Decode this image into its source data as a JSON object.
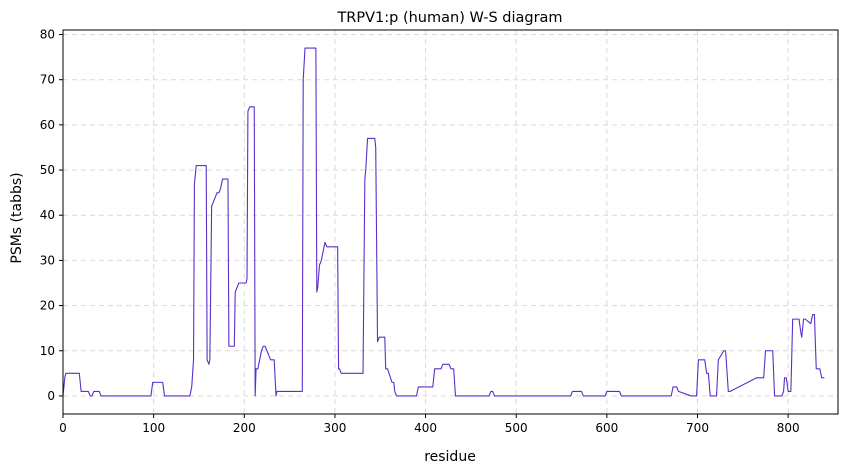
{
  "chart_data": {
    "type": "line",
    "title": "TRPV1:p (human) W-S diagram",
    "xlabel": "residue",
    "ylabel": "PSMs (tabbs)",
    "xlim": [
      0,
      855
    ],
    "ylim": [
      -4,
      81
    ],
    "xticks": [
      0,
      100,
      200,
      300,
      400,
      500,
      600,
      700,
      800
    ],
    "yticks": [
      0,
      10,
      20,
      30,
      40,
      50,
      60,
      70,
      80
    ],
    "grid": true,
    "line_color": "#5b2fc9",
    "series": [
      {
        "x": [
          0,
          2,
          3,
          5,
          18,
          20,
          28,
          30,
          32,
          34,
          40,
          42,
          97,
          99,
          110,
          112,
          140,
          142,
          144,
          145,
          147,
          158,
          159,
          161,
          162,
          164,
          166,
          168,
          170,
          172,
          174,
          176,
          182,
          183,
          189,
          190,
          192,
          194,
          202,
          203,
          204,
          206,
          211,
          212,
          213,
          215,
          219,
          221,
          223,
          225,
          227,
          229,
          233,
          235,
          236,
          238,
          264,
          265,
          267,
          269,
          279,
          280,
          281,
          283,
          285,
          287,
          289,
          291,
          303,
          304,
          305,
          307,
          331,
          333,
          334,
          336,
          344,
          345,
          347,
          349,
          355,
          356,
          358,
          363,
          365,
          366,
          368,
          369,
          390,
          392,
          408,
          410,
          417,
          419,
          426,
          428,
          431,
          433,
          470,
          472,
          474,
          476,
          560,
          562,
          572,
          574,
          598,
          600,
          614,
          616,
          671,
          673,
          677,
          679,
          693,
          695,
          699,
          701,
          708,
          710,
          712,
          714,
          721,
          723,
          729,
          731,
          734,
          736,
          765,
          767,
          773,
          775,
          783,
          785,
          793,
          795,
          796,
          798,
          800,
          803,
          805,
          812,
          814,
          815,
          817,
          819,
          825,
          827,
          829,
          831,
          835,
          837,
          840
        ],
        "y": [
          0,
          4,
          5,
          5,
          5,
          1,
          1,
          0,
          0,
          1,
          1,
          0,
          0,
          3,
          3,
          0,
          0,
          2,
          8,
          47,
          51,
          51,
          8,
          7,
          8,
          42,
          43,
          44,
          45,
          45,
          46,
          48,
          48,
          11,
          11,
          23,
          24,
          25,
          25,
          26,
          63,
          64,
          64,
          0,
          6,
          6,
          10,
          11,
          11,
          10,
          9,
          8,
          8,
          0,
          1,
          1,
          1,
          70,
          77,
          77,
          77,
          23,
          24,
          29,
          30,
          32,
          34,
          33,
          33,
          6,
          6,
          5,
          5,
          48,
          50,
          57,
          57,
          55,
          12,
          13,
          13,
          6,
          6,
          3,
          3,
          1,
          0,
          0,
          0,
          2,
          2,
          6,
          6,
          7,
          7,
          6,
          6,
          0,
          0,
          1,
          1,
          0,
          0,
          1,
          1,
          0,
          0,
          1,
          1,
          0,
          0,
          2,
          2,
          1,
          0,
          0,
          0,
          8,
          8,
          5,
          5,
          0,
          0,
          8,
          10,
          10,
          1,
          1,
          4,
          4,
          4,
          10,
          10,
          0,
          0,
          1,
          4,
          4,
          1,
          1,
          17,
          17,
          14,
          13,
          17,
          17,
          16,
          18,
          18,
          6,
          6,
          4,
          4
        ]
      }
    ]
  }
}
